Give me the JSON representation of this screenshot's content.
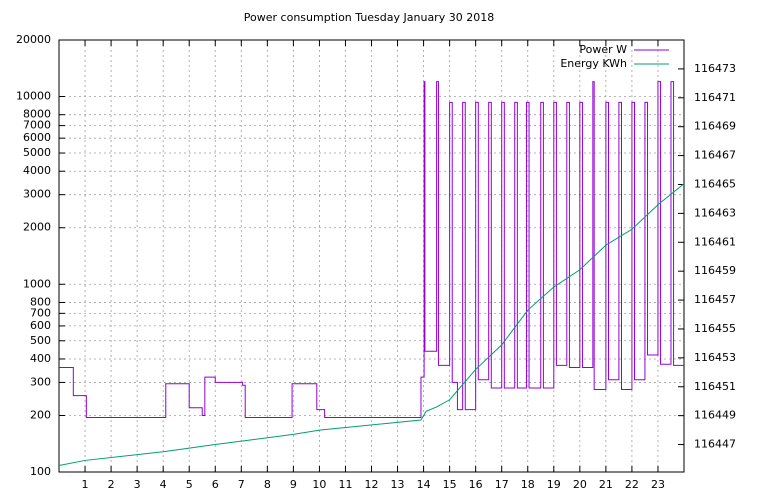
{
  "chart_data": {
    "type": "line",
    "title": "Power consumption Tuesday January 30 2018",
    "xlim": [
      0,
      24
    ],
    "xticks": [
      1,
      2,
      3,
      4,
      5,
      6,
      7,
      8,
      9,
      10,
      11,
      12,
      13,
      14,
      15,
      16,
      17,
      18,
      19,
      20,
      21,
      22,
      23
    ],
    "ylim": [
      100,
      20000
    ],
    "log_y": true,
    "yticks": [
      100,
      200,
      300,
      400,
      500,
      600,
      700,
      800,
      1000,
      2000,
      3000,
      4000,
      5000,
      6000,
      7000,
      8000,
      10000,
      20000
    ],
    "y2lim": [
      116445.1,
      116475.0
    ],
    "y2ticks": [
      116447,
      116449,
      116451,
      116453,
      116455,
      116457,
      116459,
      116461,
      116463,
      116465,
      116467,
      116469,
      116471,
      116473
    ],
    "grid": true,
    "legend": "top-right",
    "series": [
      {
        "name": "Power W",
        "color": "#9400d3",
        "x": [
          0,
          0.55,
          0.55,
          1.05,
          1.05,
          4.1,
          4.1,
          5.0,
          5.0,
          5.5,
          5.5,
          5.6,
          5.6,
          6.0,
          6.0,
          7.05,
          7.05,
          7.15,
          7.15,
          8.95,
          8.95,
          9.9,
          9.9,
          10.2,
          10.2,
          13.9,
          13.9,
          14.02,
          14.02,
          14.05,
          14.05,
          14.5,
          14.5,
          14.57,
          14.57,
          15.0,
          15.0,
          15.1,
          15.1,
          15.3,
          15.3,
          15.5,
          15.5,
          15.6,
          15.6,
          16.0,
          16.0,
          16.1,
          16.1,
          16.5,
          16.5,
          16.6,
          16.6,
          17.0,
          17.0,
          17.1,
          17.1,
          17.5,
          17.5,
          17.6,
          17.6,
          17.95,
          17.95,
          18.05,
          18.05,
          18.5,
          18.5,
          18.6,
          18.6,
          19.0,
          19.0,
          19.1,
          19.1,
          19.5,
          19.5,
          19.6,
          19.6,
          20.0,
          20.0,
          20.1,
          20.1,
          20.5,
          20.5,
          20.55,
          20.55,
          21.0,
          21.0,
          21.1,
          21.1,
          21.5,
          21.5,
          21.6,
          21.6,
          22.0,
          22.0,
          22.1,
          22.1,
          22.5,
          22.5,
          22.6,
          22.6,
          23.0,
          23.0,
          23.1,
          23.1,
          23.5,
          23.5,
          23.6,
          23.6,
          24
        ],
        "values": [
          360,
          360,
          255,
          255,
          195,
          195,
          295,
          295,
          220,
          220,
          200,
          200,
          320,
          320,
          300,
          300,
          290,
          290,
          195,
          195,
          295,
          295,
          215,
          215,
          195,
          195,
          320,
          320,
          12000,
          12000,
          440,
          440,
          12000,
          12000,
          370,
          370,
          9300,
          9300,
          300,
          300,
          215,
          215,
          9300,
          9300,
          215,
          215,
          9300,
          9300,
          310,
          310,
          9300,
          9300,
          280,
          280,
          9300,
          9300,
          280,
          280,
          9300,
          9300,
          280,
          280,
          9300,
          9300,
          280,
          280,
          9300,
          9300,
          280,
          280,
          9300,
          9300,
          370,
          370,
          9300,
          9300,
          360,
          360,
          9300,
          9300,
          360,
          360,
          12000,
          12000,
          275,
          275,
          9300,
          9300,
          310,
          310,
          9300,
          9300,
          275,
          275,
          9300,
          9300,
          310,
          310,
          9300,
          9300,
          420,
          420,
          12000,
          12000,
          375,
          375,
          12000,
          12000,
          370,
          370
        ]
      },
      {
        "name": "Energy KWh",
        "color": "#009e73",
        "axis": "y2",
        "x": [
          0,
          1,
          4,
          6,
          9,
          10,
          13.9,
          14.1,
          14.5,
          15,
          16,
          17,
          18,
          19,
          20,
          21,
          22,
          23,
          24
        ],
        "values": [
          116445.55,
          116445.9,
          116446.5,
          116447.0,
          116447.7,
          116448.0,
          116448.7,
          116449.3,
          116449.6,
          116450.1,
          116452.2,
          116453.9,
          116456.3,
          116457.9,
          116459.1,
          116460.8,
          116461.9,
          116463.6,
          116465.05
        ]
      }
    ]
  }
}
